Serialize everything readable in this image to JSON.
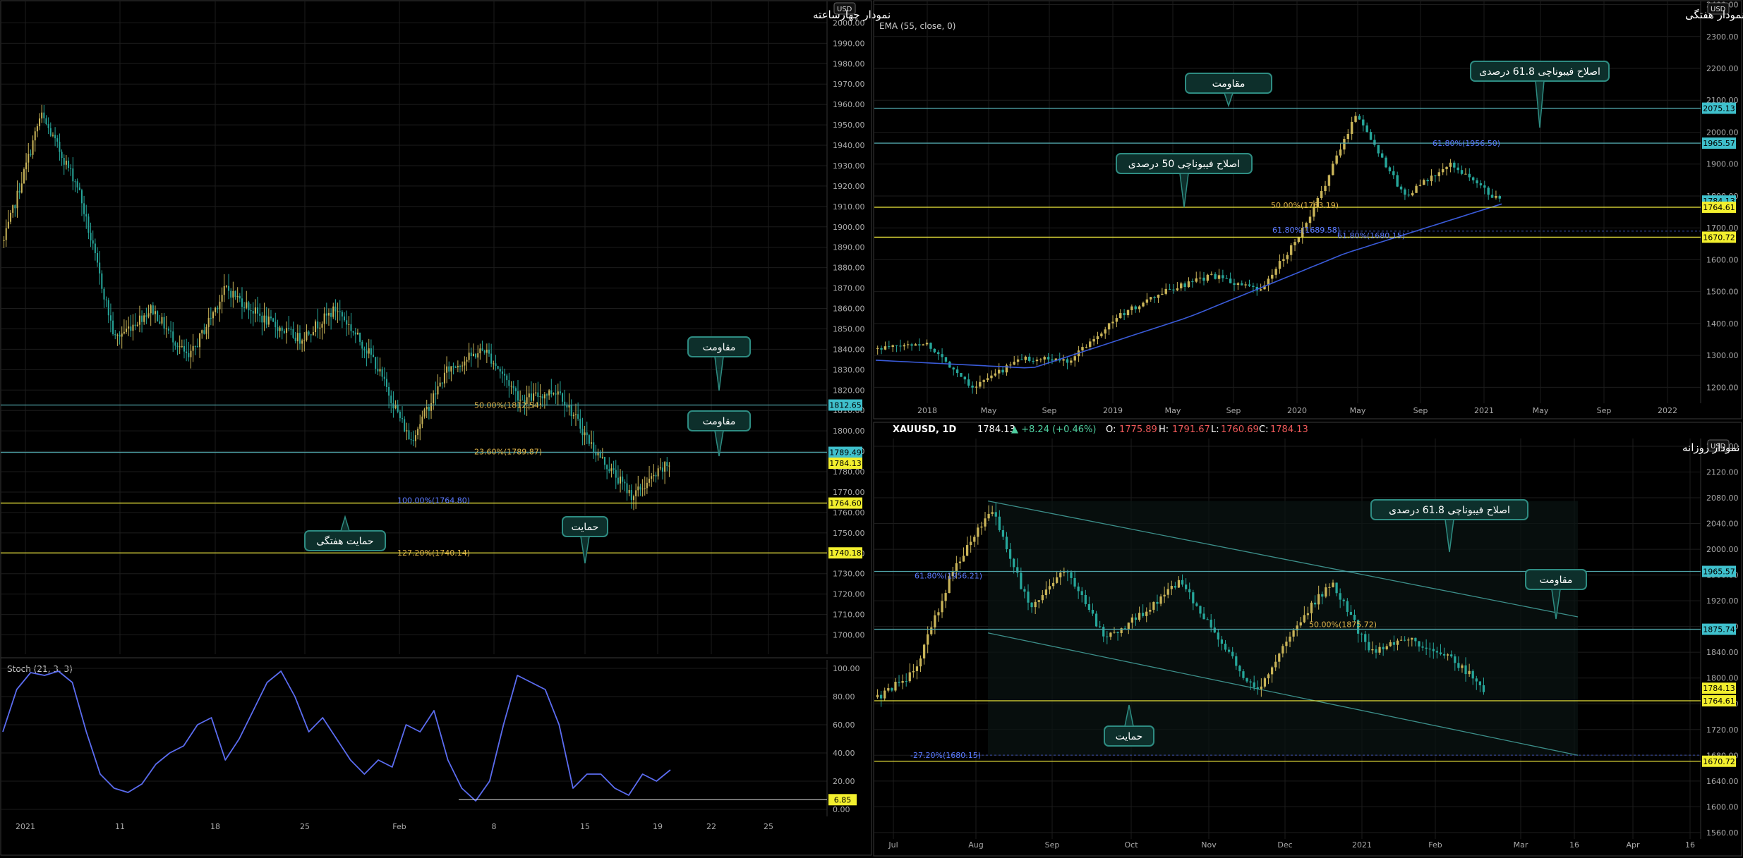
{
  "colors": {
    "bg": "#000000",
    "grid": "#1c1c1c",
    "up": "#c9b458",
    "down": "#26a69a",
    "cyan_line": "#4fa3a8",
    "yellow_line": "#e8e23a",
    "cyan_tag": "#3fc0cc",
    "yellow_tag": "#f2ef2e",
    "ema": "#3a5bd9",
    "stoch": "#5b6cf0",
    "callout_border": "#2e8c82",
    "callout_fill": "#0d2f2b",
    "axis_text": "#aaaaaa",
    "fib_orange": "#e0b54a",
    "fib_blue": "#5b7bff"
  },
  "panels": {
    "four_hour": {
      "title": "نمودار چهارساعته",
      "price_axis": {
        "min": 1700,
        "max": 2000,
        "step": 10,
        "top_label": "USD"
      },
      "x_labels": [
        "2021",
        "11",
        "18",
        "25",
        "Feb",
        "8",
        "15",
        "19",
        "22",
        "25"
      ],
      "level_tags": [
        {
          "value": "1812.65",
          "kind": "cyan"
        },
        {
          "value": "1789.49",
          "kind": "cyan"
        },
        {
          "value": "1784.13",
          "kind": "yellow"
        },
        {
          "value": "1764.60",
          "kind": "yellow"
        },
        {
          "value": "1740.18",
          "kind": "yellow"
        }
      ],
      "fib_labels": [
        {
          "text": "50.00%(1812.54)",
          "kind": "orange"
        },
        {
          "text": "23.60%(1789.87)",
          "kind": "orange"
        },
        {
          "text": "100.00%(1764.80)",
          "kind": "blue"
        },
        {
          "text": "127.20%(1740.14)",
          "kind": "orange"
        }
      ],
      "callouts": [
        {
          "text": "مقاومت",
          "pointer": "down"
        },
        {
          "text": "مقاومت",
          "pointer": "down"
        },
        {
          "text": "حمایت",
          "pointer": "down"
        },
        {
          "text": "حمایت هفتگی",
          "pointer": "up"
        }
      ]
    },
    "stoch": {
      "label": "Stoch (21, 3, 3)",
      "axis": {
        "min": 0,
        "max": 100
      },
      "axis_labels": [
        "100.00",
        "80.00",
        "60.00",
        "40.00",
        "20.00",
        "0.00"
      ],
      "value_tag": "6.85"
    },
    "weekly": {
      "title": "نمودار هفتگی",
      "indicator": "EMA (55, close, 0)",
      "price_axis": {
        "min": 1150,
        "max": 2400,
        "step": 100,
        "top_label": "USD"
      },
      "x_labels": [
        "2018",
        "May",
        "Sep",
        "2019",
        "May",
        "Sep",
        "2020",
        "May",
        "Sep",
        "2021",
        "May",
        "Sep",
        "2022"
      ],
      "level_tags": [
        {
          "value": "2075.13",
          "kind": "cyan"
        },
        {
          "value": "1965.57",
          "kind": "cyan"
        },
        {
          "value": "1784.13",
          "kind": "cyan"
        },
        {
          "value": "1764.61",
          "kind": "yellow"
        },
        {
          "value": "1670.72",
          "kind": "yellow"
        }
      ],
      "fib_labels": [
        {
          "text": "61.80%(1956.50)",
          "kind": "blue"
        },
        {
          "text": "50.00%(1763.19)",
          "kind": "orange"
        },
        {
          "text": "61.80%(1689.58)",
          "kind": "blue"
        },
        {
          "text": "61.80%(1680.15)",
          "kind": "blue"
        }
      ],
      "callouts": [
        {
          "text": "مقاومت",
          "pointer": "down"
        },
        {
          "text": "اصلاح فیبوناچی 61.8 درصدی",
          "pointer": "down"
        },
        {
          "text": "اصلاح فیبوناچی 50 درصدی",
          "pointer": "down"
        }
      ]
    },
    "daily": {
      "title": "نمودار روزانه",
      "symbol_line": {
        "symbol": "XAUUSD, 1D",
        "last": "1784.13",
        "change": "▲ +8.24 (+0.46%)",
        "o_label": "O:",
        "o": "1775.89",
        "h_label": "H:",
        "h": "1791.67",
        "l_label": "L:",
        "l": "1760.69",
        "c_label": "C:",
        "c": "1784.13"
      },
      "price_axis": {
        "min": 1550,
        "max": 2170,
        "step": 40,
        "top_label": "USD"
      },
      "x_labels": [
        "Jul",
        "Aug",
        "Sep",
        "Oct",
        "Nov",
        "Dec",
        "2021",
        "Feb",
        "Mar",
        "16",
        "Apr",
        "16"
      ],
      "level_tags": [
        {
          "value": "1965.57",
          "kind": "cyan"
        },
        {
          "value": "1875.74",
          "kind": "cyan"
        },
        {
          "value": "1784.13",
          "kind": "yellow"
        },
        {
          "value": "1764.61",
          "kind": "yellow"
        },
        {
          "value": "1670.72",
          "kind": "yellow"
        }
      ],
      "fib_labels": [
        {
          "text": "61.80%(1956.21)",
          "kind": "blue"
        },
        {
          "text": "50.00%(1875.72)",
          "kind": "orange"
        },
        {
          "text": "-27.20%(1680.15)",
          "kind": "blue"
        }
      ],
      "callouts": [
        {
          "text": "اصلاح فیبوناچی 61.8 درصدی",
          "pointer": "down"
        },
        {
          "text": "مقاومت",
          "pointer": "down"
        },
        {
          "text": "حمایت",
          "pointer": "up"
        }
      ]
    }
  },
  "chart_data": [
    {
      "type": "candlestick",
      "title": "نمودار چهارساعته",
      "symbol": "XAUUSD",
      "timeframe": "4H",
      "ylim": [
        1700,
        2000
      ],
      "x_ticks": [
        "2021",
        "11",
        "18",
        "25",
        "Feb",
        "8",
        "15",
        "19",
        "22",
        "25"
      ],
      "close_path": [
        {
          "x": "2021",
          "y": 1893
        },
        {
          "x": "Jan 6",
          "y": 1955
        },
        {
          "x": "Jan 7",
          "y": 1920
        },
        {
          "x": "11",
          "y": 1845
        },
        {
          "x": "13",
          "y": 1860
        },
        {
          "x": "18",
          "y": 1835
        },
        {
          "x": "21",
          "y": 1870
        },
        {
          "x": "25",
          "y": 1855
        },
        {
          "x": "28",
          "y": 1845
        },
        {
          "x": "Feb",
          "y": 1860
        },
        {
          "x": "Feb 3",
          "y": 1835
        },
        {
          "x": "Feb 4",
          "y": 1795
        },
        {
          "x": "8",
          "y": 1830
        },
        {
          "x": "11",
          "y": 1840
        },
        {
          "x": "12",
          "y": 1815
        },
        {
          "x": "15",
          "y": 1820
        },
        {
          "x": "16",
          "y": 1790
        },
        {
          "x": "18",
          "y": 1768
        },
        {
          "x": "19",
          "y": 1784
        }
      ],
      "horizontal_levels": [
        1812.65,
        1789.49,
        1784.13,
        1764.6,
        1740.18
      ]
    },
    {
      "type": "line",
      "title": "Stoch (21, 3, 3)",
      "ylim": [
        0,
        100
      ],
      "x_ticks": [
        "2021",
        "11",
        "18",
        "25",
        "Feb",
        "8",
        "15",
        "19",
        "22",
        "25"
      ],
      "series": [
        {
          "name": "Stoch (21, 3, 3)",
          "values": [
            55,
            85,
            97,
            95,
            98,
            90,
            55,
            25,
            15,
            12,
            18,
            32,
            40,
            45,
            60,
            65,
            35,
            50,
            70,
            90,
            98,
            80,
            55,
            65,
            50,
            35,
            25,
            35,
            30,
            60,
            55,
            70,
            35,
            15,
            6,
            20,
            60,
            95,
            90,
            85,
            60,
            15,
            25,
            25,
            15,
            10,
            25,
            20,
            28
          ]
        }
      ],
      "value_tag": 6.85
    },
    {
      "type": "candlestick",
      "title": "نمودار هفتگی",
      "symbol": "XAUUSD",
      "timeframe": "1W",
      "ylim": [
        1150,
        2400
      ],
      "x_ticks": [
        "2018",
        "May",
        "Sep",
        "2019",
        "May",
        "Sep",
        "2020",
        "May",
        "Sep",
        "2021",
        "May",
        "Sep",
        "2022"
      ],
      "close_path": [
        {
          "x": "2018",
          "y": 1320
        },
        {
          "x": "Apr 2018",
          "y": 1340
        },
        {
          "x": "Aug 2018",
          "y": 1200
        },
        {
          "x": "2019",
          "y": 1290
        },
        {
          "x": "May 2019",
          "y": 1285
        },
        {
          "x": "Jul 2019",
          "y": 1420
        },
        {
          "x": "Sep 2019",
          "y": 1500
        },
        {
          "x": "2020",
          "y": 1550
        },
        {
          "x": "Mar 2020",
          "y": 1500
        },
        {
          "x": "May 2020",
          "y": 1720
        },
        {
          "x": "Aug 2020",
          "y": 2060
        },
        {
          "x": "Nov 2020",
          "y": 1800
        },
        {
          "x": "2021",
          "y": 1900
        },
        {
          "x": "Feb 2021",
          "y": 1784
        }
      ],
      "ema_55": [
        {
          "x": "2018",
          "y": 1285
        },
        {
          "x": "2019",
          "y": 1260
        },
        {
          "x": "2020",
          "y": 1420
        },
        {
          "x": "Aug 2020",
          "y": 1620
        },
        {
          "x": "Feb 2021",
          "y": 1775
        }
      ],
      "horizontal_levels": [
        2075.13,
        1965.57,
        1764.61,
        1670.72
      ]
    },
    {
      "type": "candlestick",
      "title": "نمودار روزانه",
      "symbol": "XAUUSD",
      "timeframe": "1D",
      "ylim": [
        1550,
        2170
      ],
      "x_ticks": [
        "Jul",
        "Aug",
        "Sep",
        "Oct",
        "Nov",
        "Dec",
        "2021",
        "Feb",
        "Mar",
        "16",
        "Apr",
        "16"
      ],
      "close_path": [
        {
          "x": "Jul",
          "y": 1770
        },
        {
          "x": "Jul 15",
          "y": 1810
        },
        {
          "x": "Jul 31",
          "y": 1970
        },
        {
          "x": "Aug 6",
          "y": 2065
        },
        {
          "x": "Aug 11",
          "y": 1910
        },
        {
          "x": "Sep 1",
          "y": 1970
        },
        {
          "x": "Sep 24",
          "y": 1860
        },
        {
          "x": "Oct",
          "y": 1900
        },
        {
          "x": "Nov 6",
          "y": 1950
        },
        {
          "x": "Nov 9",
          "y": 1860
        },
        {
          "x": "Nov 30",
          "y": 1775
        },
        {
          "x": "Dec 20",
          "y": 1880
        },
        {
          "x": "2021",
          "y": 1950
        },
        {
          "x": "Jan 8",
          "y": 1840
        },
        {
          "x": "Feb",
          "y": 1860
        },
        {
          "x": "Feb 10",
          "y": 1840
        },
        {
          "x": "Feb 19",
          "y": 1784
        }
      ],
      "channel_upper": [
        {
          "x": "Aug 6",
          "y": 2075
        },
        {
          "x": "Mar 15",
          "y": 1895
        }
      ],
      "channel_lower": [
        {
          "x": "Aug 6",
          "y": 1870
        },
        {
          "x": "Mar 15",
          "y": 1680
        }
      ],
      "horizontal_levels": [
        1965.57,
        1875.74,
        1764.61,
        1670.72
      ]
    }
  ]
}
